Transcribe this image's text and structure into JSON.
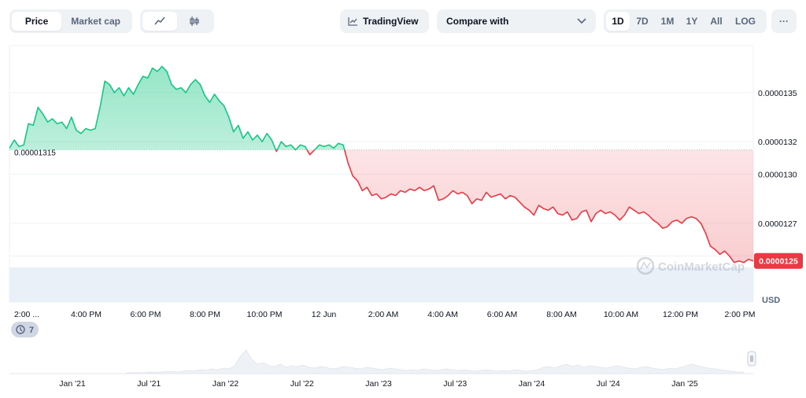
{
  "toolbar": {
    "metric_tabs": [
      "Price",
      "Market cap"
    ],
    "active_metric": "Price",
    "tradingview_label": "TradingView",
    "compare_placeholder": "Compare with",
    "ranges": [
      "1D",
      "7D",
      "1M",
      "1Y",
      "All",
      "LOG"
    ],
    "active_range": "1D",
    "more_label": "···"
  },
  "colors": {
    "up": "#16c784",
    "down": "#ea3943",
    "up_fill": "#d8f5e8",
    "down_fill": "#fde3e4",
    "grid": "#eff2f5",
    "text_muted": "#58667e",
    "volume": "#eaf0f8"
  },
  "watermark": "CoinMarketCap",
  "chart_data": {
    "type": "area",
    "currency_label": "USD",
    "baseline_value": 1.315e-05,
    "baseline_label": "0.00001315",
    "last_price_label": "0.0000125",
    "y_ticks": [
      "0.0000135",
      "0.0000132",
      "0.0000130",
      "0.0000127",
      "0.0000125"
    ],
    "ylim": [
      1.243e-05,
      1.373e-05
    ],
    "x_ticks": [
      "2:00 ...",
      "4:00 PM",
      "6:00 PM",
      "8:00 PM",
      "10:00 PM",
      "12 Jun",
      "2:00 AM",
      "4:00 AM",
      "6:00 AM",
      "8:00 AM",
      "10:00 AM",
      "12:00 PM",
      "2:00 PM"
    ],
    "events_badge": "7",
    "series": [
      {
        "values": [
          1.316e-05,
          1.321e-05,
          1.317e-05,
          1.318e-05,
          1.331e-05,
          1.33e-05,
          1.341e-05,
          1.337e-05,
          1.332e-05,
          1.334e-05,
          1.331e-05,
          1.332e-05,
          1.328e-05,
          1.335e-05,
          1.327e-05,
          1.325e-05,
          1.328e-05,
          1.327e-05,
          1.328e-05,
          1.341e-05,
          1.357e-05,
          1.355e-05,
          1.35e-05,
          1.353e-05,
          1.348e-05,
          1.353e-05,
          1.349e-05,
          1.355e-05,
          1.36e-05,
          1.359e-05,
          1.365e-05,
          1.363e-05,
          1.366e-05,
          1.363e-05,
          1.355e-05,
          1.352e-05,
          1.353e-05,
          1.35e-05,
          1.355e-05,
          1.358e-05,
          1.355e-05,
          1.348e-05,
          1.344e-05,
          1.349e-05,
          1.345e-05,
          1.342e-05,
          1.335e-05,
          1.326e-05,
          1.33e-05,
          1.322e-05,
          1.326e-05,
          1.321e-05,
          1.324e-05,
          1.32e-05,
          1.325e-05,
          1.321e-05,
          1.314e-05,
          1.32e-05,
          1.317e-05,
          1.318e-05,
          1.315e-05,
          1.318e-05,
          1.317e-05,
          1.312e-05,
          1.315e-05,
          1.318e-05,
          1.317e-05,
          1.318e-05,
          1.316e-05,
          1.319e-05,
          1.318e-05,
          1.307e-05,
          1.299e-05,
          1.296e-05,
          1.29e-05,
          1.292e-05,
          1.287e-05,
          1.288e-05,
          1.285e-05,
          1.286e-05,
          1.288e-05,
          1.287e-05,
          1.29e-05,
          1.289e-05,
          1.291e-05,
          1.29e-05,
          1.292e-05,
          1.29e-05,
          1.291e-05,
          1.293e-05,
          1.284e-05,
          1.285e-05,
          1.287e-05,
          1.29e-05,
          1.288e-05,
          1.289e-05,
          1.287e-05,
          1.282e-05,
          1.285e-05,
          1.284e-05,
          1.289e-05,
          1.286e-05,
          1.287e-05,
          1.288e-05,
          1.285e-05,
          1.287e-05,
          1.286e-05,
          1.283e-05,
          1.28e-05,
          1.278e-05,
          1.275e-05,
          1.281e-05,
          1.279e-05,
          1.278e-05,
          1.28e-05,
          1.276e-05,
          1.275e-05,
          1.277e-05,
          1.272e-05,
          1.273e-05,
          1.277e-05,
          1.278e-05,
          1.271e-05,
          1.276e-05,
          1.278e-05,
          1.276e-05,
          1.277e-05,
          1.275e-05,
          1.272e-05,
          1.275e-05,
          1.28e-05,
          1.278e-05,
          1.276e-05,
          1.277e-05,
          1.275e-05,
          1.272e-05,
          1.27e-05,
          1.267e-05,
          1.268e-05,
          1.271e-05,
          1.272e-05,
          1.27e-05,
          1.273e-05,
          1.274e-05,
          1.273e-05,
          1.27e-05,
          1.264e-05,
          1.256e-05,
          1.254e-05,
          1.251e-05,
          1.253e-05,
          1.25e-05,
          1.246e-05,
          1.247e-05,
          1.246e-05,
          1.248e-05,
          1.247e-05
        ]
      }
    ]
  },
  "navigator": {
    "x_ticks": [
      "Jan '21",
      "Jul '21",
      "Jan '22",
      "Jul '22",
      "Jan '23",
      "Jul '23",
      "Jan '24",
      "Jul '24",
      "Jan '25"
    ]
  }
}
